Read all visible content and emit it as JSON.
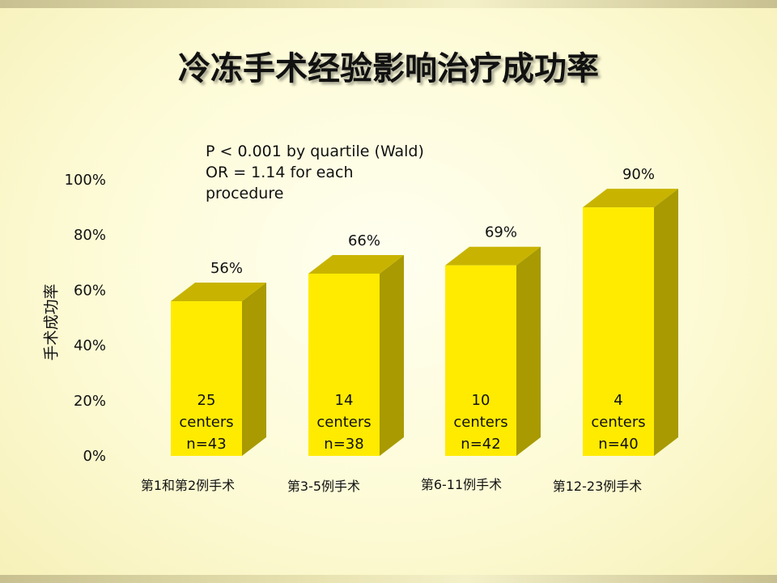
{
  "slide": {
    "title": "冷冻手术经验影响治疗成功率"
  },
  "annotation": {
    "line1": "P < 0.001 by quartile (Wald)",
    "line2": "OR = 1.14 for each",
    "line3": "procedure"
  },
  "colors": {
    "bar_front": "#ffeb00",
    "bar_side": "#a89a00",
    "bar_top": "#c8b400"
  },
  "chart_data": {
    "type": "bar",
    "ylabel": "手术成功率",
    "ylim": [
      0,
      100
    ],
    "yticks": [
      "0%",
      "20%",
      "40%",
      "60%",
      "80%",
      "100%"
    ],
    "categories": [
      "第1和第2例手术",
      "第3-5例手术",
      "第6-11例手术",
      "第12-23例手术"
    ],
    "values": [
      56,
      66,
      69,
      90
    ],
    "value_labels": [
      "56%",
      "66%",
      "69%",
      "90%"
    ],
    "bar_text": [
      [
        "25",
        "centers",
        "n=43"
      ],
      [
        "14",
        "centers",
        "n=38"
      ],
      [
        "10",
        "centers",
        "n=42"
      ],
      [
        "4",
        "centers",
        "n=40"
      ]
    ],
    "grid": false,
    "legend": "none"
  }
}
